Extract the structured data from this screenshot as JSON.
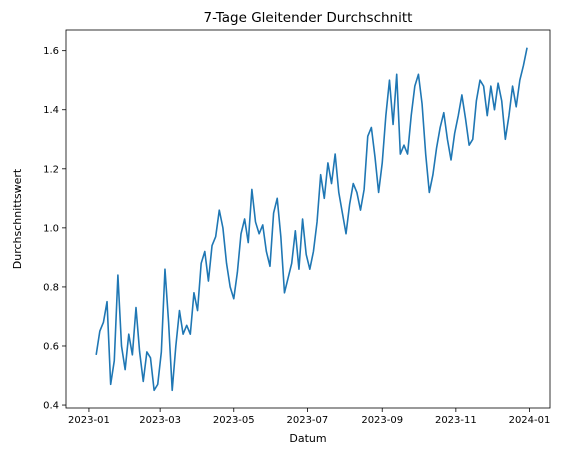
{
  "chart_data": {
    "type": "line",
    "title": "7-Tage Gleitender Durchschnitt",
    "xlabel": "Datum",
    "ylabel": "Durchschnittswert",
    "xlim": [
      "2022-12-13",
      "2024-01-18"
    ],
    "ylim": [
      0.39,
      1.67
    ],
    "x_ticks": [
      "2023-01",
      "2023-03",
      "2023-05",
      "2023-07",
      "2023-09",
      "2023-11",
      "2024-01"
    ],
    "y_ticks": [
      "0.4",
      "0.6",
      "0.8",
      "1.0",
      "1.2",
      "1.4",
      "1.6"
    ],
    "grid": false,
    "line_color": "#1f77b4",
    "series": [
      {
        "x": [
          "2023-01-07",
          "2023-01-10",
          "2023-01-13",
          "2023-01-16",
          "2023-01-19",
          "2023-01-22",
          "2023-01-25",
          "2023-01-28",
          "2023-01-31",
          "2023-02-03",
          "2023-02-06",
          "2023-02-09",
          "2023-02-12",
          "2023-02-15",
          "2023-02-18",
          "2023-02-21",
          "2023-02-24",
          "2023-02-27",
          "2023-03-02",
          "2023-03-05",
          "2023-03-08",
          "2023-03-11",
          "2023-03-14",
          "2023-03-17",
          "2023-03-20",
          "2023-03-23",
          "2023-03-26",
          "2023-03-29",
          "2023-04-01",
          "2023-04-04",
          "2023-04-07",
          "2023-04-10",
          "2023-04-13",
          "2023-04-16",
          "2023-04-19",
          "2023-04-22",
          "2023-04-25",
          "2023-04-28",
          "2023-05-01",
          "2023-05-04",
          "2023-05-07",
          "2023-05-10",
          "2023-05-13",
          "2023-05-16",
          "2023-05-19",
          "2023-05-22",
          "2023-05-25",
          "2023-05-28",
          "2023-05-31",
          "2023-06-03",
          "2023-06-06",
          "2023-06-09",
          "2023-06-12",
          "2023-06-15",
          "2023-06-18",
          "2023-06-21",
          "2023-06-24",
          "2023-06-27",
          "2023-06-30",
          "2023-07-03",
          "2023-07-06",
          "2023-07-09",
          "2023-07-12",
          "2023-07-15",
          "2023-07-18",
          "2023-07-21",
          "2023-07-24",
          "2023-07-27",
          "2023-07-30",
          "2023-08-02",
          "2023-08-05",
          "2023-08-08",
          "2023-08-11",
          "2023-08-14",
          "2023-08-17",
          "2023-08-20",
          "2023-08-23",
          "2023-08-26",
          "2023-08-29",
          "2023-09-01",
          "2023-09-04",
          "2023-09-07",
          "2023-09-10",
          "2023-09-13",
          "2023-09-16",
          "2023-09-19",
          "2023-09-22",
          "2023-09-25",
          "2023-09-28",
          "2023-10-01",
          "2023-10-04",
          "2023-10-07",
          "2023-10-10",
          "2023-10-13",
          "2023-10-16",
          "2023-10-19",
          "2023-10-22",
          "2023-10-25",
          "2023-10-28",
          "2023-10-31",
          "2023-11-03",
          "2023-11-06",
          "2023-11-09",
          "2023-11-12",
          "2023-11-15",
          "2023-11-18",
          "2023-11-21",
          "2023-11-24",
          "2023-11-27",
          "2023-11-30",
          "2023-12-03",
          "2023-12-06",
          "2023-12-09",
          "2023-12-12",
          "2023-12-15",
          "2023-12-18",
          "2023-12-21",
          "2023-12-24",
          "2023-12-27",
          "2023-12-30"
        ],
        "values": [
          0.57,
          0.65,
          0.68,
          0.75,
          0.47,
          0.55,
          0.84,
          0.6,
          0.52,
          0.64,
          0.57,
          0.73,
          0.58,
          0.48,
          0.58,
          0.56,
          0.45,
          0.47,
          0.58,
          0.86,
          0.68,
          0.45,
          0.6,
          0.72,
          0.64,
          0.67,
          0.64,
          0.78,
          0.72,
          0.88,
          0.92,
          0.82,
          0.94,
          0.97,
          1.06,
          1.0,
          0.88,
          0.8,
          0.76,
          0.85,
          0.98,
          1.03,
          0.95,
          1.13,
          1.02,
          0.98,
          1.01,
          0.92,
          0.87,
          1.05,
          1.1,
          0.97,
          0.78,
          0.83,
          0.88,
          0.99,
          0.86,
          1.03,
          0.91,
          0.86,
          0.92,
          1.02,
          1.18,
          1.1,
          1.22,
          1.15,
          1.25,
          1.12,
          1.05,
          0.98,
          1.08,
          1.15,
          1.12,
          1.06,
          1.13,
          1.31,
          1.34,
          1.24,
          1.12,
          1.22,
          1.38,
          1.5,
          1.35,
          1.52,
          1.25,
          1.28,
          1.25,
          1.38,
          1.48,
          1.52,
          1.42,
          1.25,
          1.12,
          1.18,
          1.27,
          1.34,
          1.39,
          1.3,
          1.23,
          1.32,
          1.38,
          1.45,
          1.37,
          1.28,
          1.3,
          1.43,
          1.5,
          1.48,
          1.38,
          1.48,
          1.4,
          1.49,
          1.43,
          1.3,
          1.38,
          1.48,
          1.41,
          1.5,
          1.55,
          1.61
        ]
      }
    ]
  }
}
